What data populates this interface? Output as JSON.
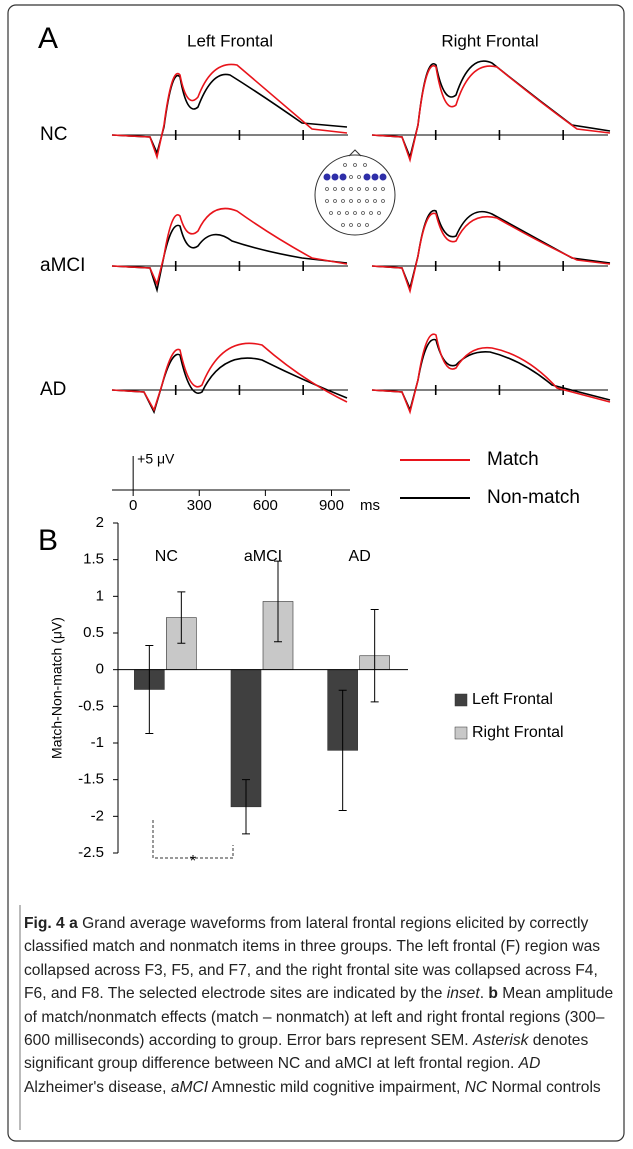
{
  "panel_a": {
    "label": "A",
    "columns": [
      "Left Frontal",
      "Right Frontal"
    ],
    "rows": [
      "NC",
      "aMCI",
      "AD"
    ],
    "scale_label": "+5 μV",
    "xlim": [
      -96,
      984
    ],
    "xticks": [
      0,
      300,
      600,
      900
    ],
    "x_unit": "ms",
    "legend": [
      {
        "name": "Match",
        "color": "#e8141b"
      },
      {
        "name": "Non-match",
        "color": "#000000"
      }
    ]
  },
  "chart_data": {
    "type": "bar",
    "label": "B",
    "ylabel": "Match-Non-match (μV)",
    "categories": [
      "NC",
      "aMCI",
      "AD"
    ],
    "ylim": [
      -2.5,
      2
    ],
    "yticks": [
      -2.5,
      -2,
      -1.5,
      -1,
      -0.5,
      0,
      0.5,
      1,
      1.5,
      2
    ],
    "series": [
      {
        "name": "Left Frontal",
        "color": "#404040",
        "values": [
          -0.27,
          -1.87,
          -1.1
        ],
        "errors": [
          0.6,
          0.37,
          0.82
        ]
      },
      {
        "name": "Right Frontal",
        "color": "#c8c8c8",
        "values": [
          0.71,
          0.93,
          0.19
        ],
        "errors": [
          0.35,
          0.55,
          0.63
        ]
      }
    ],
    "annotation": "*"
  },
  "caption": [
    {
      "text": "Fig. 4",
      "style": "bold"
    },
    {
      "text": " "
    },
    {
      "text": "a",
      "style": "bold"
    },
    {
      "text": " Grand average waveforms from lateral frontal regions elicited by correctly classified match and nonmatch items in three groups. The left frontal (F) region was collapsed across F3, F5, and F7, and the right frontal site was collapsed across F4, F6, and F8. The selected electrode sites are indicated by the "
    },
    {
      "text": "inset",
      "style": "italic"
    },
    {
      "text": ". "
    },
    {
      "text": "b",
      "style": "bold"
    },
    {
      "text": " Mean amplitude of match/nonmatch effects (match – nonmatch) at left and right frontal regions (300–600 milliseconds) according to group. Error bars represent SEM. "
    },
    {
      "text": "Asterisk",
      "style": "italic"
    },
    {
      "text": " denotes significant group difference between NC and aMCI at left frontal region. "
    },
    {
      "text": "AD",
      "style": "italic"
    },
    {
      "text": " Alzheimer's disease, "
    },
    {
      "text": "aMCI",
      "style": "italic"
    },
    {
      "text": " Amnestic mild cognitive impairment, "
    },
    {
      "text": "NC",
      "style": "italic"
    },
    {
      "text": " Normal controls"
    }
  ]
}
